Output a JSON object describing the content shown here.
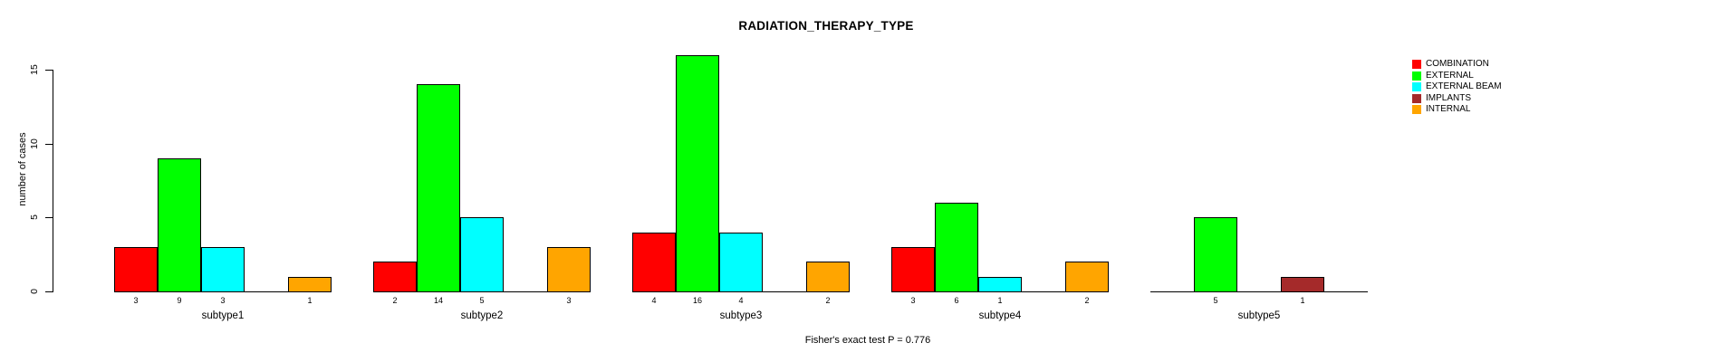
{
  "chart_data": {
    "type": "bar",
    "title": "RADIATION_THERAPY_TYPE",
    "xlabel": "",
    "ylabel": "number of cases",
    "categories": [
      "subtype1",
      "subtype2",
      "subtype3",
      "subtype4",
      "subtype5"
    ],
    "series": [
      {
        "name": "COMBINATION",
        "color": "#FF0000",
        "values": [
          3,
          2,
          4,
          3,
          0
        ]
      },
      {
        "name": "EXTERNAL",
        "color": "#00FF00",
        "values": [
          9,
          14,
          16,
          6,
          5
        ]
      },
      {
        "name": "EXTERNAL BEAM",
        "color": "#00FFFF",
        "values": [
          3,
          5,
          4,
          1,
          0
        ]
      },
      {
        "name": "IMPLANTS",
        "color": "#A52A2A",
        "values": [
          0,
          0,
          0,
          0,
          1
        ]
      },
      {
        "name": "INTERNAL",
        "color": "#FFA500",
        "values": [
          1,
          3,
          2,
          2,
          0
        ]
      }
    ],
    "yticks": [
      0,
      5,
      10,
      15
    ],
    "ylim": [
      0,
      16.5
    ],
    "grid": false,
    "legend_position": "top-right",
    "value_labels": "shown below axis for non-zero bars only; zero bars drawn as flat baseline segments",
    "annotation": "Fisher's exact test P = 0.776",
    "colors": {
      "background": "#FFFFFF",
      "axis": "#000000",
      "bar_border": "#000000"
    }
  }
}
